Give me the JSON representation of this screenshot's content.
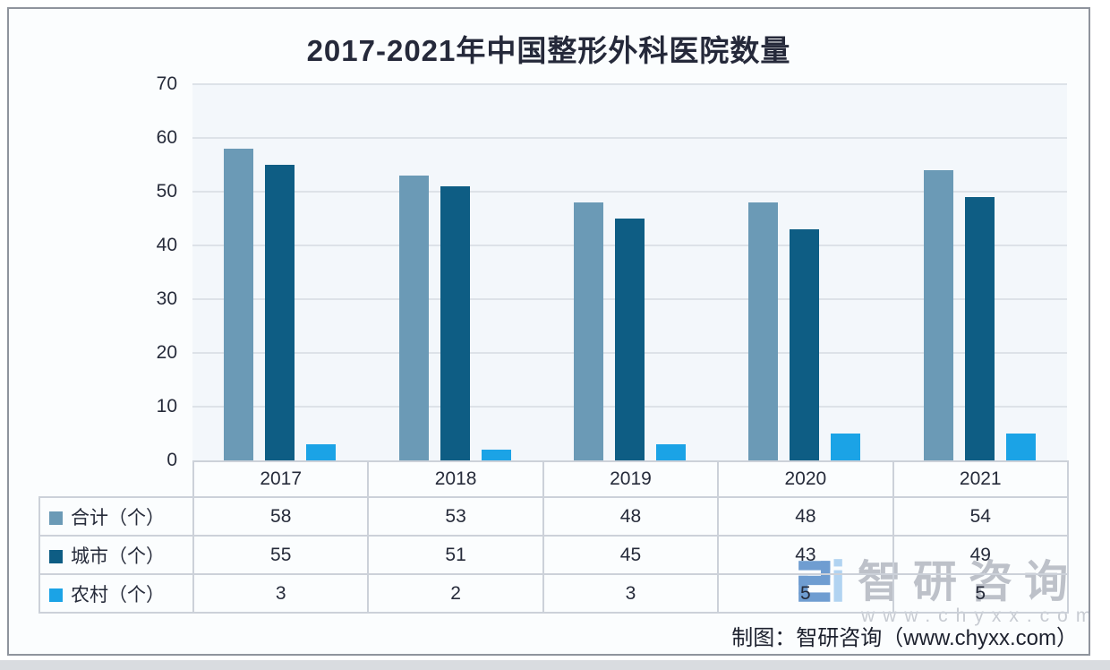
{
  "title": "2017-2021年中国整形外科医院数量",
  "chart_data": {
    "type": "bar",
    "title": "2017-2021年中国整形外科医院数量",
    "categories": [
      "2017",
      "2018",
      "2019",
      "2020",
      "2021"
    ],
    "series": [
      {
        "key": "total",
        "name": "合计（个）",
        "color": "#6b9ab6",
        "values": [
          58,
          53,
          48,
          48,
          54
        ]
      },
      {
        "key": "urban",
        "name": "城市（个）",
        "color": "#0e5d84",
        "values": [
          55,
          51,
          45,
          43,
          49
        ]
      },
      {
        "key": "rural",
        "name": "农村（个）",
        "color": "#1ba3e6",
        "values": [
          3,
          2,
          3,
          5,
          5
        ]
      }
    ],
    "ylim": [
      0,
      70
    ],
    "yticks": [
      0,
      10,
      20,
      30,
      40,
      50,
      60,
      70
    ],
    "grid": true,
    "legend_position": "data-table-left",
    "xlabel": "",
    "ylabel": ""
  },
  "watermark": {
    "brand": "智研咨询",
    "domain": "www.chyxx.com"
  },
  "footer": {
    "credit": "制图：智研咨询（www.chyxx.com）"
  }
}
